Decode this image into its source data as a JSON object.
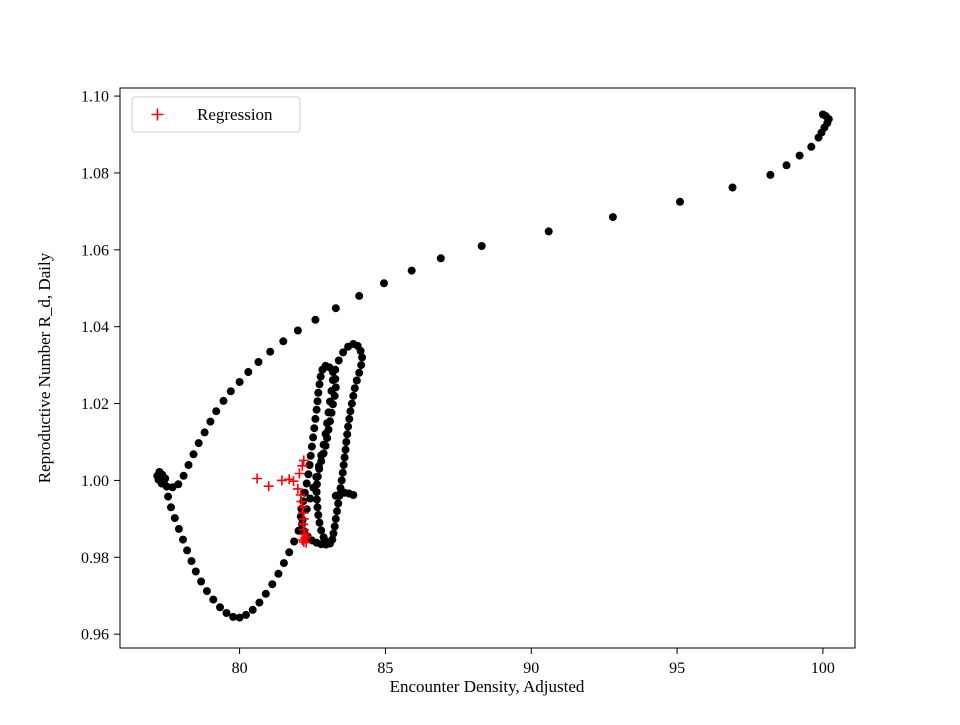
{
  "chart_data": {
    "type": "scatter",
    "title": "",
    "xlabel": "Encounter Density, Adjusted",
    "ylabel": "Reproductive Number R_d, Daily",
    "xlim": [
      75.9,
      101.1
    ],
    "ylim": [
      0.9564,
      1.1021
    ],
    "grid": false,
    "x_ticks": [
      {
        "value": 80,
        "label": "80"
      },
      {
        "value": 85,
        "label": "85"
      },
      {
        "value": 90,
        "label": "90"
      },
      {
        "value": 95,
        "label": "95"
      },
      {
        "value": 100,
        "label": "100"
      }
    ],
    "y_ticks": [
      {
        "value": 0.96,
        "label": "0.96"
      },
      {
        "value": 0.98,
        "label": "0.98"
      },
      {
        "value": 1.0,
        "label": "1.00"
      },
      {
        "value": 1.02,
        "label": "1.02"
      },
      {
        "value": 1.04,
        "label": "1.04"
      },
      {
        "value": 1.06,
        "label": "1.06"
      },
      {
        "value": 1.08,
        "label": "1.08"
      },
      {
        "value": 1.1,
        "label": "1.10"
      }
    ],
    "legend": {
      "position": "upper-left",
      "items": [
        {
          "label": "Regression",
          "marker": "plus",
          "color": "#ff0000"
        }
      ]
    },
    "colors": {
      "trajectory": "#000000",
      "regression": "#ff0000",
      "axes": "#000000",
      "legend_border": "#cccccc"
    },
    "series": [
      {
        "name": "trajectory",
        "marker": "circle",
        "color": "#000000",
        "points": [
          [
            100.0,
            1.0952
          ],
          [
            100.1,
            1.0948
          ],
          [
            100.2,
            1.094
          ],
          [
            100.15,
            1.093
          ],
          [
            100.05,
            1.0918
          ],
          [
            99.95,
            1.0905
          ],
          [
            99.85,
            1.0892
          ],
          [
            99.6,
            1.0868
          ],
          [
            99.2,
            1.0845
          ],
          [
            98.75,
            1.082
          ],
          [
            98.2,
            1.0795
          ],
          [
            96.9,
            1.0762
          ],
          [
            95.1,
            1.0725
          ],
          [
            92.8,
            1.0685
          ],
          [
            90.6,
            1.0648
          ],
          [
            88.3,
            1.061
          ],
          [
            86.9,
            1.0578
          ],
          [
            85.9,
            1.0546
          ],
          [
            84.95,
            1.0513
          ],
          [
            84.1,
            1.048
          ],
          [
            83.3,
            1.0448
          ],
          [
            82.6,
            1.0418
          ],
          [
            82.0,
            1.039
          ],
          [
            81.5,
            1.0362
          ],
          [
            81.05,
            1.0335
          ],
          [
            80.65,
            1.0308
          ],
          [
            80.3,
            1.0282
          ],
          [
            80.0,
            1.0256
          ],
          [
            79.7,
            1.0232
          ],
          [
            79.45,
            1.0207
          ],
          [
            79.2,
            1.018
          ],
          [
            79.0,
            1.0153
          ],
          [
            78.8,
            1.0125
          ],
          [
            78.6,
            1.0097
          ],
          [
            78.42,
            1.0068
          ],
          [
            78.25,
            1.004
          ],
          [
            78.08,
            1.0012
          ],
          [
            77.9,
            0.999
          ],
          [
            77.7,
            0.9982
          ],
          [
            77.5,
            0.9984
          ],
          [
            77.33,
            0.9992
          ],
          [
            77.22,
            1.0002
          ],
          [
            77.18,
            1.0012
          ],
          [
            77.25,
            1.0022
          ],
          [
            77.35,
            1.0015
          ],
          [
            77.45,
            1.0005
          ],
          [
            77.4,
            0.9994
          ],
          [
            77.55,
            0.9958
          ],
          [
            77.65,
            0.993
          ],
          [
            77.78,
            0.9902
          ],
          [
            77.92,
            0.9874
          ],
          [
            78.06,
            0.9846
          ],
          [
            78.2,
            0.9818
          ],
          [
            78.35,
            0.979
          ],
          [
            78.5,
            0.9763
          ],
          [
            78.68,
            0.9737
          ],
          [
            78.88,
            0.9712
          ],
          [
            79.1,
            0.969
          ],
          [
            79.33,
            0.967
          ],
          [
            79.55,
            0.9655
          ],
          [
            79.78,
            0.9645
          ],
          [
            80.0,
            0.9643
          ],
          [
            80.22,
            0.965
          ],
          [
            80.45,
            0.9663
          ],
          [
            80.68,
            0.9682
          ],
          [
            80.9,
            0.9705
          ],
          [
            81.12,
            0.973
          ],
          [
            81.33,
            0.9757
          ],
          [
            81.52,
            0.9785
          ],
          [
            81.7,
            0.9813
          ],
          [
            81.87,
            0.9841
          ],
          [
            82.02,
            0.9869
          ],
          [
            82.16,
            0.9897
          ],
          [
            82.3,
            0.9925
          ],
          [
            82.42,
            0.9953
          ],
          [
            82.53,
            0.9981
          ],
          [
            82.63,
            1.0009
          ],
          [
            82.72,
            1.0037
          ],
          [
            82.8,
            1.0065
          ],
          [
            82.88,
            1.0093
          ],
          [
            82.95,
            1.0121
          ],
          [
            83.0,
            1.0149
          ],
          [
            83.05,
            1.0177
          ],
          [
            83.1,
            1.0205
          ],
          [
            83.15,
            1.0233
          ],
          [
            83.2,
            1.0261
          ],
          [
            83.28,
            1.0288
          ],
          [
            83.4,
            1.0312
          ],
          [
            83.55,
            1.0333
          ],
          [
            83.72,
            1.0348
          ],
          [
            83.9,
            1.0355
          ],
          [
            84.05,
            1.035
          ],
          [
            84.15,
            1.0337
          ],
          [
            84.2,
            1.032
          ],
          [
            84.17,
            1.03
          ],
          [
            84.1,
            1.028
          ],
          [
            84.02,
            1.026
          ],
          [
            83.95,
            1.024
          ],
          [
            83.9,
            1.022
          ],
          [
            83.85,
            1.02
          ],
          [
            83.8,
            1.018
          ],
          [
            83.76,
            1.016
          ],
          [
            83.72,
            1.014
          ],
          [
            83.69,
            1.012
          ],
          [
            83.66,
            1.01
          ],
          [
            83.63,
            1.008
          ],
          [
            83.6,
            1.006
          ],
          [
            83.57,
            1.004
          ],
          [
            83.54,
            1.002
          ],
          [
            83.5,
            1.0
          ],
          [
            83.46,
            0.998
          ],
          [
            83.42,
            0.996
          ],
          [
            83.38,
            0.994
          ],
          [
            83.34,
            0.992
          ],
          [
            83.3,
            0.99
          ],
          [
            83.26,
            0.988
          ],
          [
            83.22,
            0.9862
          ],
          [
            83.18,
            0.9846
          ],
          [
            83.1,
            0.9836
          ],
          [
            82.98,
            0.984
          ],
          [
            82.88,
            0.9852
          ],
          [
            82.8,
            0.987
          ],
          [
            82.74,
            0.989
          ],
          [
            82.7,
            0.991
          ],
          [
            82.67,
            0.993
          ],
          [
            82.65,
            0.995
          ],
          [
            82.64,
            0.997
          ],
          [
            82.65,
            0.999
          ],
          [
            82.68,
            1.001
          ],
          [
            82.73,
            1.003
          ],
          [
            82.8,
            1.005
          ],
          [
            82.88,
            1.007
          ],
          [
            82.95,
            1.009
          ],
          [
            83.0,
            1.011
          ],
          [
            83.05,
            1.0132
          ],
          [
            83.1,
            1.0154
          ],
          [
            83.15,
            1.0176
          ],
          [
            83.2,
            1.0198
          ],
          [
            83.26,
            1.022
          ],
          [
            83.3,
            1.0242
          ],
          [
            83.28,
            1.0264
          ],
          [
            83.2,
            1.0282
          ],
          [
            83.08,
            1.0294
          ],
          [
            82.95,
            1.0298
          ],
          [
            82.84,
            1.0288
          ],
          [
            82.78,
            1.027
          ],
          [
            82.74,
            1.025
          ],
          [
            82.7,
            1.0228
          ],
          [
            82.67,
            1.0206
          ],
          [
            82.64,
            1.0184
          ],
          [
            82.6,
            1.016
          ],
          [
            82.56,
            1.0136
          ],
          [
            82.52,
            1.0112
          ],
          [
            82.48,
            1.0088
          ],
          [
            82.44,
            1.0064
          ],
          [
            82.4,
            1.004
          ],
          [
            82.36,
            1.0016
          ],
          [
            82.3,
            0.9992
          ],
          [
            82.24,
            0.9968
          ],
          [
            82.18,
            0.9946
          ],
          [
            82.12,
            0.9926
          ],
          [
            82.1,
            0.9906
          ],
          [
            82.14,
            0.9886
          ],
          [
            82.22,
            0.9868
          ],
          [
            82.34,
            0.9854
          ],
          [
            82.48,
            0.9844
          ],
          [
            82.64,
            0.9838
          ],
          [
            82.8,
            0.9834
          ],
          [
            82.96,
            0.9833
          ],
          [
            83.3,
            0.996
          ],
          [
            83.45,
            0.9965
          ],
          [
            83.6,
            0.9968
          ],
          [
            83.75,
            0.9966
          ],
          [
            83.9,
            0.9962
          ]
        ]
      },
      {
        "name": "regression",
        "marker": "plus",
        "color": "#ff0000",
        "points": [
          [
            80.6,
            1.0005
          ],
          [
            81.0,
            0.9985
          ],
          [
            81.45,
            1.0
          ],
          [
            81.7,
            1.0003
          ],
          [
            81.85,
            0.9998
          ],
          [
            82.0,
            0.9978
          ],
          [
            82.05,
            1.0018
          ],
          [
            82.15,
            1.0038
          ],
          [
            82.2,
            1.0052
          ],
          [
            82.1,
            0.9962
          ],
          [
            82.12,
            0.9945
          ],
          [
            82.15,
            0.993
          ],
          [
            82.18,
            0.9915
          ],
          [
            82.2,
            0.99
          ],
          [
            82.18,
            0.9886
          ],
          [
            82.2,
            0.9872
          ],
          [
            82.22,
            0.986
          ],
          [
            82.25,
            0.985
          ],
          [
            82.2,
            0.984
          ],
          [
            82.28,
            0.9838
          ],
          [
            82.3,
            0.9855
          ],
          [
            82.15,
            0.9845
          ]
        ]
      }
    ]
  }
}
